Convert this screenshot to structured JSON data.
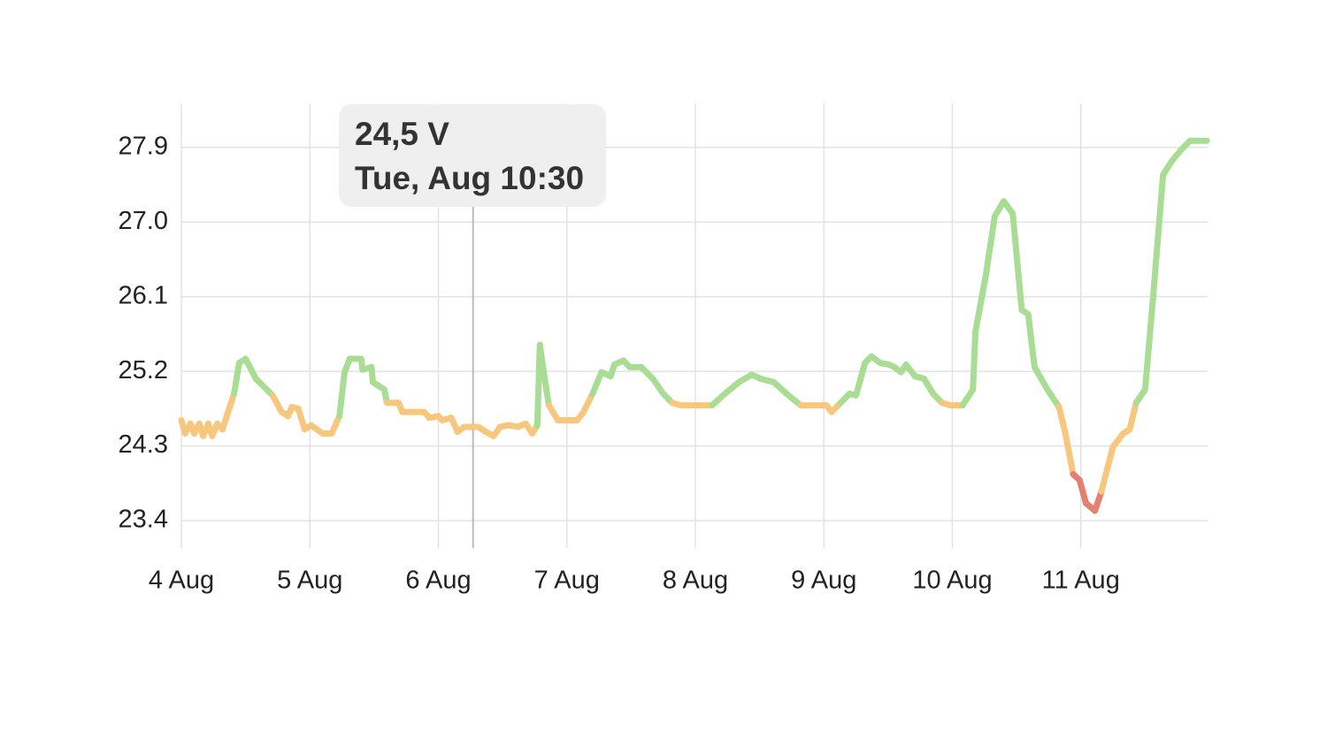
{
  "chart_data": {
    "type": "line",
    "x": [
      4.0,
      4.03,
      4.07,
      4.1,
      4.14,
      4.17,
      4.21,
      4.24,
      4.28,
      4.32,
      4.41,
      4.45,
      4.5,
      4.58,
      4.71,
      4.78,
      4.83,
      4.86,
      4.91,
      4.96,
      5.01,
      5.1,
      5.17,
      5.23,
      5.27,
      5.31,
      5.4,
      5.41,
      5.48,
      5.49,
      5.58,
      5.6,
      5.69,
      5.72,
      5.89,
      5.93,
      6.0,
      6.03,
      6.1,
      6.15,
      6.2,
      6.31,
      6.37,
      6.43,
      6.48,
      6.55,
      6.62,
      6.68,
      6.73,
      6.77,
      6.79,
      6.82,
      6.86,
      6.93,
      7.08,
      7.13,
      7.2,
      7.27,
      7.34,
      7.37,
      7.44,
      7.49,
      7.58,
      7.67,
      7.75,
      7.82,
      7.89,
      8.13,
      8.23,
      8.34,
      8.44,
      8.51,
      8.61,
      8.71,
      8.82,
      9.02,
      9.06,
      9.13,
      9.2,
      9.25,
      9.32,
      9.37,
      9.44,
      9.51,
      9.55,
      9.6,
      9.64,
      9.71,
      9.78,
      9.85,
      9.92,
      9.99,
      10.08,
      10.16,
      10.18,
      10.26,
      10.33,
      10.4,
      10.47,
      10.54,
      10.59,
      10.64,
      10.74,
      10.83,
      10.88,
      10.94,
      10.99,
      11.04,
      11.11,
      11.16,
      11.25,
      11.33,
      11.38,
      11.43,
      11.5,
      11.56,
      11.64,
      11.71,
      11.78,
      11.85,
      11.98
    ],
    "values": [
      24.61,
      24.45,
      24.57,
      24.45,
      24.57,
      24.42,
      24.57,
      24.42,
      24.57,
      24.5,
      24.93,
      25.3,
      25.35,
      25.11,
      24.91,
      24.71,
      24.66,
      24.77,
      24.75,
      24.5,
      24.55,
      24.45,
      24.45,
      24.66,
      25.19,
      25.35,
      25.35,
      25.22,
      25.25,
      25.07,
      24.98,
      24.82,
      24.82,
      24.71,
      24.71,
      24.64,
      24.66,
      24.61,
      24.64,
      24.47,
      24.53,
      24.53,
      24.47,
      24.42,
      24.53,
      24.55,
      24.53,
      24.57,
      24.45,
      24.55,
      25.52,
      25.19,
      24.79,
      24.61,
      24.61,
      24.71,
      24.93,
      25.19,
      25.14,
      25.28,
      25.33,
      25.25,
      25.25,
      25.11,
      24.93,
      24.82,
      24.79,
      24.79,
      24.93,
      25.07,
      25.16,
      25.11,
      25.07,
      24.93,
      24.79,
      24.79,
      24.71,
      24.82,
      24.93,
      24.91,
      25.3,
      25.38,
      25.3,
      25.28,
      25.25,
      25.19,
      25.28,
      25.14,
      25.11,
      24.93,
      24.82,
      24.79,
      24.79,
      24.98,
      25.68,
      26.35,
      27.07,
      27.25,
      27.1,
      25.94,
      25.89,
      25.25,
      24.98,
      24.77,
      24.45,
      23.96,
      23.89,
      23.61,
      23.52,
      23.75,
      24.29,
      24.45,
      24.5,
      24.82,
      24.98,
      26.05,
      27.57,
      27.74,
      27.87,
      27.98,
      27.98
    ],
    "thresholds": [
      24.0,
      24.85
    ],
    "colors": [
      "#e3806f",
      "#f6c77c",
      "#a9dd93"
    ],
    "xlim": [
      4,
      12
    ],
    "xticks": [
      {
        "value": 4,
        "label": "4 Aug"
      },
      {
        "value": 5,
        "label": "5 Aug"
      },
      {
        "value": 6,
        "label": "6 Aug"
      },
      {
        "value": 7,
        "label": "7 Aug"
      },
      {
        "value": 8,
        "label": "8 Aug"
      },
      {
        "value": 9,
        "label": "9 Aug"
      },
      {
        "value": 10,
        "label": "10 Aug"
      },
      {
        "value": 11,
        "label": "11 Aug"
      }
    ],
    "ylim": [
      23.07,
      28.43
    ],
    "yticks": [
      23.4,
      24.3,
      25.2,
      26.1,
      {
        "value": 27,
        "label": "27.0"
      },
      27.9
    ],
    "grid": true,
    "tooltip": {
      "x": 6.27,
      "value_text": "24,5 V",
      "time_text": "Tue, Aug 10:30"
    }
  }
}
